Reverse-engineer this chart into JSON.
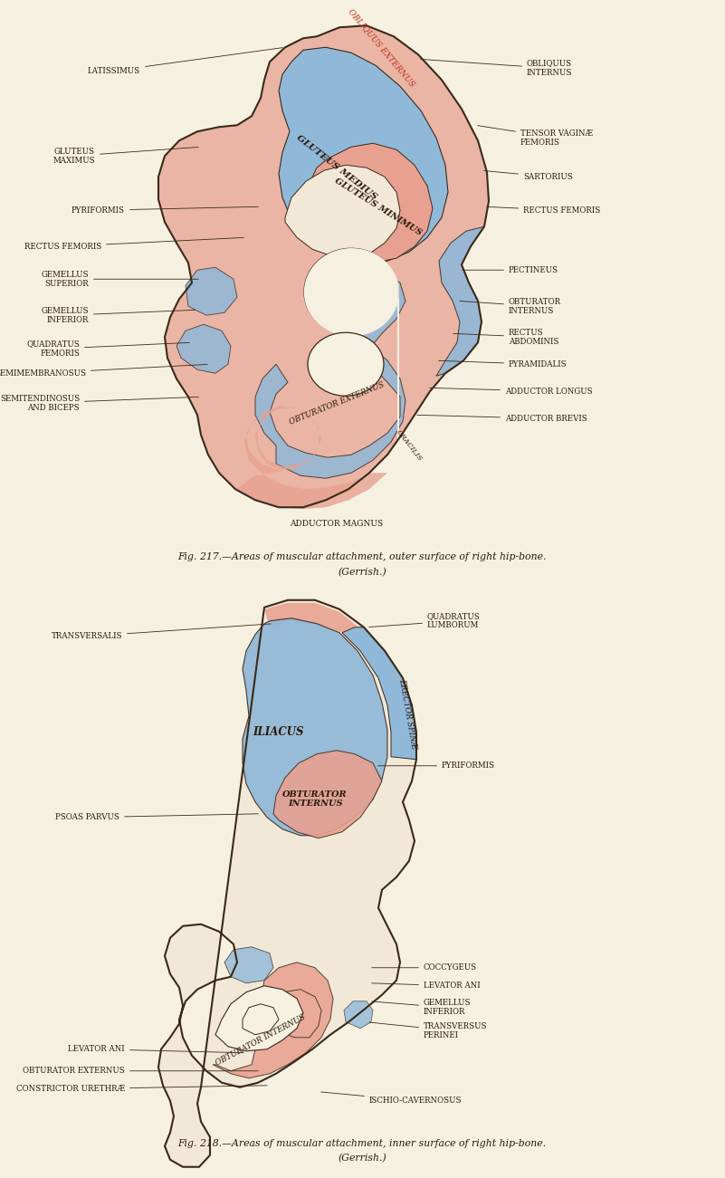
{
  "bg_color": "#f5f0e0",
  "bone_fill": "#f2e8d8",
  "bone_line": "#3a2a1a",
  "pink": "#e8a090",
  "blue": "#90b8d8",
  "text_dark": "#2a1a0a",
  "text_red": "#c03020",
  "title1": "Fig. 217.—Areas of muscular attachment, outer surface of right hip-bone.",
  "title1b": "(Gerrish.)",
  "title2": "Fig. 218.—Areas of muscular attachment, inner surface of right hip-bone.",
  "title2b": "(Gerrish.)"
}
